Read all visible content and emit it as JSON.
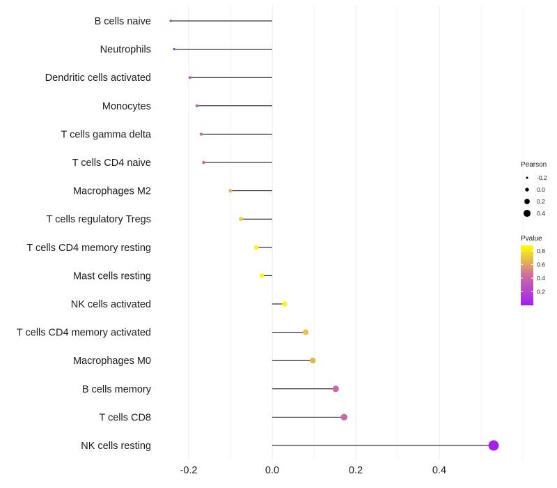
{
  "chart_data": {
    "type": "lollipop",
    "title": "",
    "xlabel": "",
    "ylabel": "",
    "xlim": [
      -0.3,
      0.65
    ],
    "x_ticks": [
      -0.2,
      0.0,
      0.2,
      0.4
    ],
    "x_tick_labels": [
      "-0.2",
      "0.0",
      "0.2",
      "0.4"
    ],
    "baseline": 0.0,
    "grid": "vertical",
    "categories": [
      "B cells naive",
      "Neutrophils",
      "Dendritic cells activated",
      "Monocytes",
      "T cells gamma delta",
      "T cells CD4 naive",
      "Macrophages M2",
      "T cells regulatory  Tregs",
      "T cells CD4 memory resting",
      "Mast cells resting",
      "NK cells activated",
      "T cells CD4 memory activated",
      "Macrophages M0",
      "B cells memory",
      "T cells CD8",
      "NK cells resting"
    ],
    "pearson": [
      -0.243,
      -0.235,
      -0.197,
      -0.18,
      -0.17,
      -0.164,
      -0.1,
      -0.075,
      -0.038,
      -0.025,
      0.03,
      0.08,
      0.097,
      0.152,
      0.172,
      0.53
    ],
    "pvalue": [
      0.12,
      0.18,
      0.3,
      0.35,
      0.4,
      0.42,
      0.66,
      0.72,
      0.86,
      0.87,
      0.86,
      0.7,
      0.66,
      0.42,
      0.4,
      0.02
    ],
    "legend_size": {
      "title": "Pearson",
      "values": [
        -0.2,
        0.0,
        0.2,
        0.4
      ],
      "labels": [
        "-0.2",
        "0.0",
        "0.2",
        "0.4"
      ]
    },
    "legend_color": {
      "title": "Pvalue",
      "range": [
        0.0,
        0.88
      ],
      "ticks": [
        0.2,
        0.4,
        0.6,
        0.8
      ],
      "labels": [
        "0.2",
        "0.4",
        "0.6",
        "0.8"
      ],
      "color_low": "#a020f0",
      "color_mid": "#cc6ea2",
      "color_high": "#ffff00"
    },
    "legend_position": "right"
  }
}
